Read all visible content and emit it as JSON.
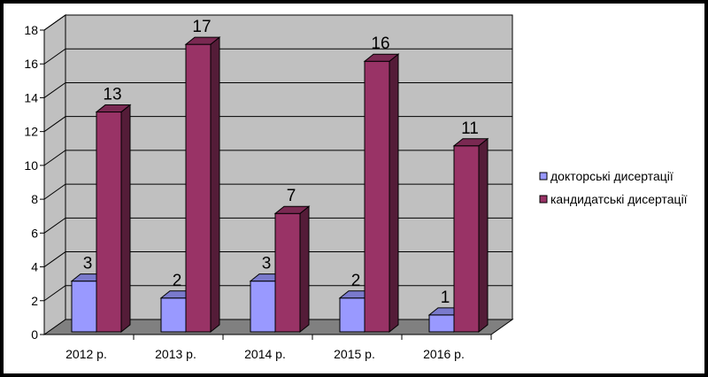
{
  "chart_data": {
    "type": "bar",
    "categories": [
      "2012 р.",
      "2013 р.",
      "2014 р.",
      "2015 р.",
      "2016 р."
    ],
    "series": [
      {
        "name": "докторські дисертації",
        "values": [
          3,
          2,
          3,
          2,
          1
        ],
        "color": "#9999ff"
      },
      {
        "name": "кандидатські дисертації",
        "values": [
          13,
          17,
          7,
          16,
          11
        ],
        "color": "#993366"
      }
    ],
    "ylim": [
      0,
      18
    ],
    "yticks": [
      "0",
      "2",
      "4",
      "6",
      "8",
      "10",
      "12",
      "14",
      "16",
      "18"
    ],
    "grid": true,
    "legend": "right",
    "style": "3d-clustered-column",
    "wall_color": "#c0c0c0",
    "floor_color": "#808080"
  }
}
